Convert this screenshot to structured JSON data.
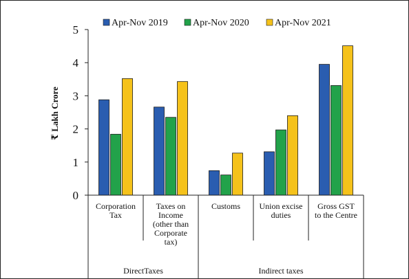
{
  "chart_data": {
    "type": "bar",
    "title": "",
    "ylabel": "₹ Lakh Crore",
    "ylim": [
      0,
      5
    ],
    "yticks": [
      0,
      1,
      2,
      3,
      4,
      5
    ],
    "grid": false,
    "legend_position": "top",
    "categories": [
      [
        "Corporation",
        "Tax"
      ],
      [
        "Taxes on",
        "Income",
        "(other than",
        "Corporate",
        "tax)"
      ],
      [
        "Customs"
      ],
      [
        "Union excise",
        "duties"
      ],
      [
        "Gross GST",
        "to the Centre"
      ]
    ],
    "groups": [
      {
        "label": "DirectTaxes",
        "span": [
          0,
          1
        ]
      },
      {
        "label": "Indirect taxes",
        "span": [
          2,
          4
        ]
      }
    ],
    "series": [
      {
        "name": "Apr-Nov 2019",
        "color": "#2a5db0",
        "values": [
          2.88,
          2.66,
          0.74,
          1.31,
          3.95
        ]
      },
      {
        "name": "Apr-Nov 2020",
        "color": "#22a24a",
        "values": [
          1.84,
          2.35,
          0.61,
          1.97,
          3.31
        ]
      },
      {
        "name": "Apr-Nov 2021",
        "color": "#f5c21b",
        "values": [
          3.52,
          3.43,
          1.27,
          2.4,
          4.51
        ]
      }
    ]
  }
}
